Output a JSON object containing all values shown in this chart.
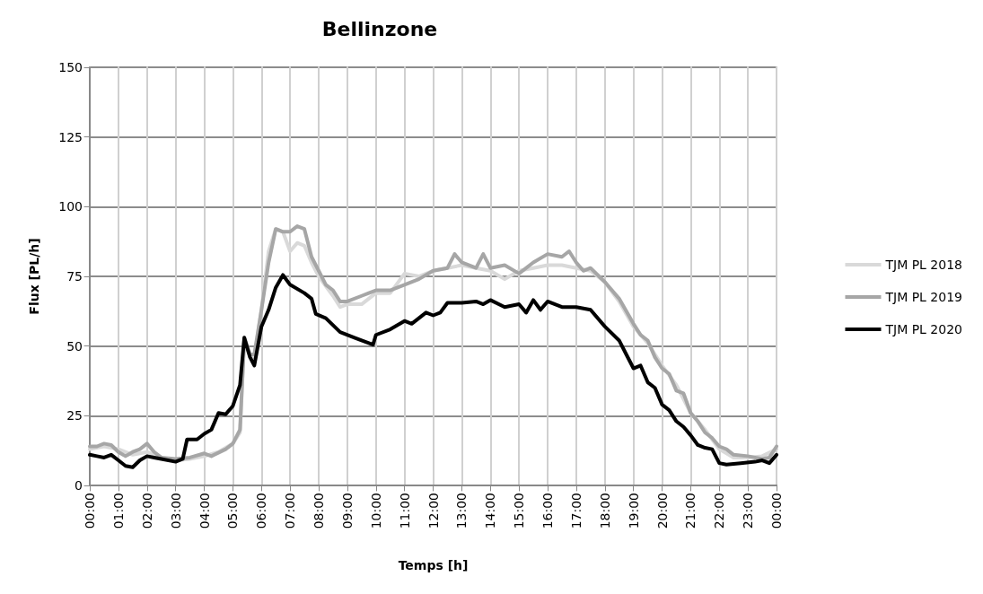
{
  "chart_data": {
    "type": "line",
    "title": "Bellinzone",
    "xlabel": "Temps [h]",
    "ylabel": "Flux [PL/h]",
    "xlim": [
      0,
      24
    ],
    "xticks": [
      {
        "value": 0,
        "label": "00:00"
      },
      {
        "value": 1,
        "label": "01:00"
      },
      {
        "value": 2,
        "label": "02:00"
      },
      {
        "value": 3,
        "label": "03:00"
      },
      {
        "value": 4,
        "label": "04:00"
      },
      {
        "value": 5,
        "label": "05:00"
      },
      {
        "value": 6,
        "label": "06:00"
      },
      {
        "value": 7,
        "label": "07:00"
      },
      {
        "value": 8,
        "label": "08:00"
      },
      {
        "value": 9,
        "label": "09:00"
      },
      {
        "value": 10,
        "label": "10:00"
      },
      {
        "value": 11,
        "label": "11:00"
      },
      {
        "value": 12,
        "label": "12:00"
      },
      {
        "value": 13,
        "label": "13:00"
      },
      {
        "value": 14,
        "label": "14:00"
      },
      {
        "value": 15,
        "label": "15:00"
      },
      {
        "value": 16,
        "label": "16:00"
      },
      {
        "value": 17,
        "label": "17:00"
      },
      {
        "value": 18,
        "label": "18:00"
      },
      {
        "value": 19,
        "label": "19:00"
      },
      {
        "value": 20,
        "label": "20:00"
      },
      {
        "value": 21,
        "label": "21:00"
      },
      {
        "value": 22,
        "label": "22:00"
      },
      {
        "value": 23,
        "label": "23:00"
      },
      {
        "value": 24,
        "label": "00:00"
      }
    ],
    "ylim": [
      0,
      150
    ],
    "yticks": [
      0,
      25,
      50,
      75,
      100,
      125,
      150
    ],
    "grid": true,
    "legend": "right",
    "marker": "none",
    "line_style": "solid",
    "series": [
      {
        "name": "TJM PL 2018",
        "color": "#d9d9d9",
        "x": [
          0,
          0.5,
          1,
          1.5,
          2,
          2.5,
          3,
          3.5,
          4,
          4.5,
          5,
          5.25,
          5.4,
          5.6,
          5.75,
          6,
          6.25,
          6.5,
          6.75,
          7,
          7.25,
          7.5,
          7.75,
          8,
          8.5,
          8.75,
          9,
          9.5,
          10,
          10.5,
          11,
          11.5,
          12,
          12.5,
          13,
          13.5,
          14,
          14.5,
          15,
          15.5,
          16,
          16.5,
          17,
          17.5,
          18,
          18.5,
          19,
          19.5,
          20,
          20.5,
          21,
          21.5,
          22,
          22.5,
          23,
          23.5,
          24
        ],
        "values": [
          13,
          14,
          13,
          11,
          12,
          10,
          9,
          9.5,
          10.5,
          12,
          15,
          19,
          52,
          46,
          46,
          63,
          84,
          92,
          91,
          84,
          87,
          86,
          80,
          75,
          68,
          64,
          65,
          65,
          69,
          69,
          76,
          75,
          77,
          78,
          79,
          78,
          77,
          74,
          77,
          78,
          79,
          79,
          78,
          77,
          73,
          66,
          57,
          51,
          43,
          36,
          26,
          20,
          13,
          10,
          10,
          10.5,
          13
        ]
      },
      {
        "name": "TJM PL 2019",
        "color": "#a6a6a6",
        "x": [
          0,
          0.25,
          0.5,
          0.75,
          1,
          1.25,
          1.5,
          1.75,
          2,
          2.25,
          2.5,
          3,
          3.5,
          4,
          4.25,
          4.75,
          5,
          5.25,
          5.4,
          5.6,
          5.75,
          6,
          6.25,
          6.5,
          6.75,
          7,
          7.25,
          7.5,
          7.75,
          8,
          8.25,
          8.5,
          8.75,
          9,
          9.5,
          9.75,
          10,
          10.5,
          11,
          11.5,
          12,
          12.5,
          12.75,
          13,
          13.5,
          13.75,
          14,
          14.5,
          15,
          15.5,
          16,
          16.5,
          16.75,
          17,
          17.25,
          17.5,
          18,
          18.5,
          19,
          19.25,
          19.5,
          19.75,
          20,
          20.25,
          20.5,
          20.75,
          21,
          21.25,
          21.5,
          21.75,
          22,
          22.25,
          22.5,
          23,
          23.5,
          23.75,
          24
        ],
        "values": [
          14,
          14,
          15,
          14.5,
          12,
          10.5,
          12,
          13,
          15,
          12,
          10,
          9.5,
          10,
          11.5,
          10.5,
          13,
          15,
          20,
          53,
          47,
          47,
          63,
          80,
          92,
          91,
          91,
          93,
          92,
          82,
          77,
          72,
          70,
          66,
          66,
          68,
          69,
          70,
          70,
          72,
          74,
          77,
          78,
          83,
          80,
          78,
          83,
          78,
          79,
          76,
          80,
          83,
          82,
          84,
          80,
          77,
          78,
          73,
          67,
          58,
          54,
          52,
          46,
          42,
          40,
          34,
          33,
          26,
          23,
          19,
          17,
          14,
          13,
          11,
          10.5,
          9.5,
          10,
          14
        ]
      },
      {
        "name": "TJM PL 2020",
        "color": "#000000",
        "x": [
          0,
          0.25,
          0.5,
          0.75,
          1,
          1.25,
          1.5,
          1.75,
          2,
          2.25,
          2.5,
          3,
          3.25,
          3.4,
          3.75,
          4,
          4.25,
          4.5,
          4.75,
          5,
          5.25,
          5.4,
          5.6,
          5.75,
          6,
          6.25,
          6.5,
          6.75,
          7,
          7.5,
          7.75,
          7.9,
          8.25,
          8.75,
          9.25,
          9.5,
          9.9,
          10,
          10.5,
          11,
          11.25,
          11.5,
          11.75,
          12,
          12.25,
          12.5,
          13,
          13.5,
          13.75,
          14,
          14.5,
          15,
          15.25,
          15.5,
          15.75,
          16,
          16.5,
          17,
          17.5,
          18,
          18.5,
          18.75,
          19,
          19.25,
          19.5,
          19.75,
          20,
          20.25,
          20.5,
          20.75,
          21,
          21.25,
          21.5,
          21.75,
          22,
          22.25,
          22.75,
          23.25,
          23.5,
          23.75,
          24
        ],
        "values": [
          11,
          10.5,
          10,
          11,
          9,
          7,
          6.5,
          9,
          10.5,
          10,
          9.5,
          8.5,
          9.5,
          16.5,
          16.5,
          18.5,
          20,
          26,
          25.5,
          28.5,
          36,
          53,
          46,
          43,
          57,
          63,
          71,
          75.5,
          72,
          69,
          67,
          61.5,
          60,
          55,
          53,
          52,
          50.5,
          54,
          56,
          59,
          58,
          60,
          62,
          61,
          62,
          65.5,
          65.5,
          66,
          65,
          66.5,
          64,
          65,
          62,
          66.5,
          63,
          66,
          64,
          64,
          63,
          57,
          52,
          47,
          42,
          43,
          37,
          35,
          29,
          27,
          23,
          21,
          18,
          14.5,
          13.5,
          13,
          8,
          7.5,
          8,
          8.5,
          9,
          8,
          11
        ]
      }
    ]
  }
}
